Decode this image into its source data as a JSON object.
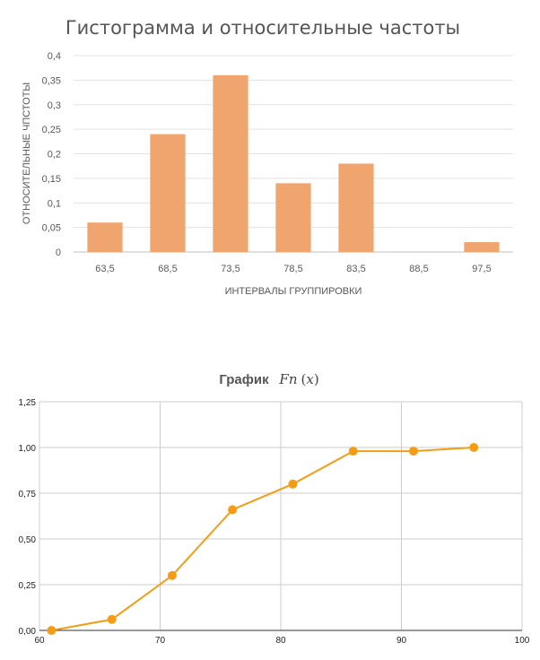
{
  "chart_data": [
    {
      "type": "bar",
      "title": "Гистограмма и относительные частоты",
      "xlabel": "ИНТЕРВАЛЫ ГРУППИРОВКИ",
      "ylabel": "ОТНОСИТЕЛЬНЫЕ ЧПСТОТЫ",
      "categories": [
        "63,5",
        "68,5",
        "73,5",
        "78,5",
        "83,5",
        "88,5",
        "97,5"
      ],
      "values": [
        0.06,
        0.24,
        0.36,
        0.14,
        0.18,
        0,
        0.02
      ],
      "yticks": [
        "0",
        "0,05",
        "0,1",
        "0,15",
        "0,2",
        "0,25",
        "0,3",
        "0,35",
        "0,4"
      ],
      "ylim": [
        0,
        0.4
      ],
      "grid": true,
      "bar_color": "#f0a46e"
    },
    {
      "type": "line",
      "title_prefix": "График",
      "title_func": "Fn",
      "title_open": "(",
      "title_var": "x",
      "title_close": ")",
      "x": [
        61,
        66,
        71,
        76,
        81,
        86,
        91,
        96
      ],
      "y": [
        0,
        0.06,
        0.3,
        0.66,
        0.8,
        0.98,
        0.98,
        1.0
      ],
      "xticks": [
        "60",
        "70",
        "80",
        "90",
        "100"
      ],
      "yticks": [
        "0,00",
        "0,25",
        "0,50",
        "0,75",
        "1,00",
        "1,25"
      ],
      "xlim": [
        60,
        100
      ],
      "ylim": [
        0,
        1.25
      ],
      "grid": true,
      "line_color": "#f59c16"
    }
  ]
}
